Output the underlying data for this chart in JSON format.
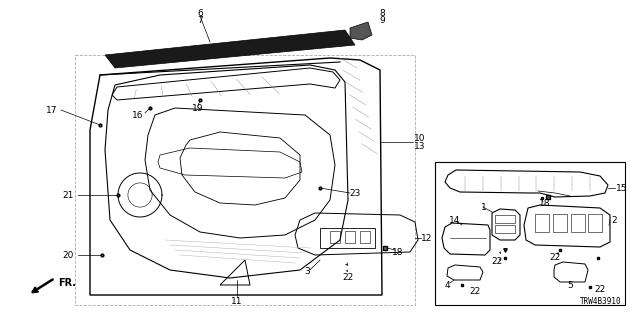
{
  "bg_color": "#ffffff",
  "fig_width": 6.4,
  "fig_height": 3.2,
  "dpi": 100,
  "diagram_code": "TRW4B3910",
  "line_color": "#000000",
  "gray_line": "#888888",
  "font_size": 6.5
}
